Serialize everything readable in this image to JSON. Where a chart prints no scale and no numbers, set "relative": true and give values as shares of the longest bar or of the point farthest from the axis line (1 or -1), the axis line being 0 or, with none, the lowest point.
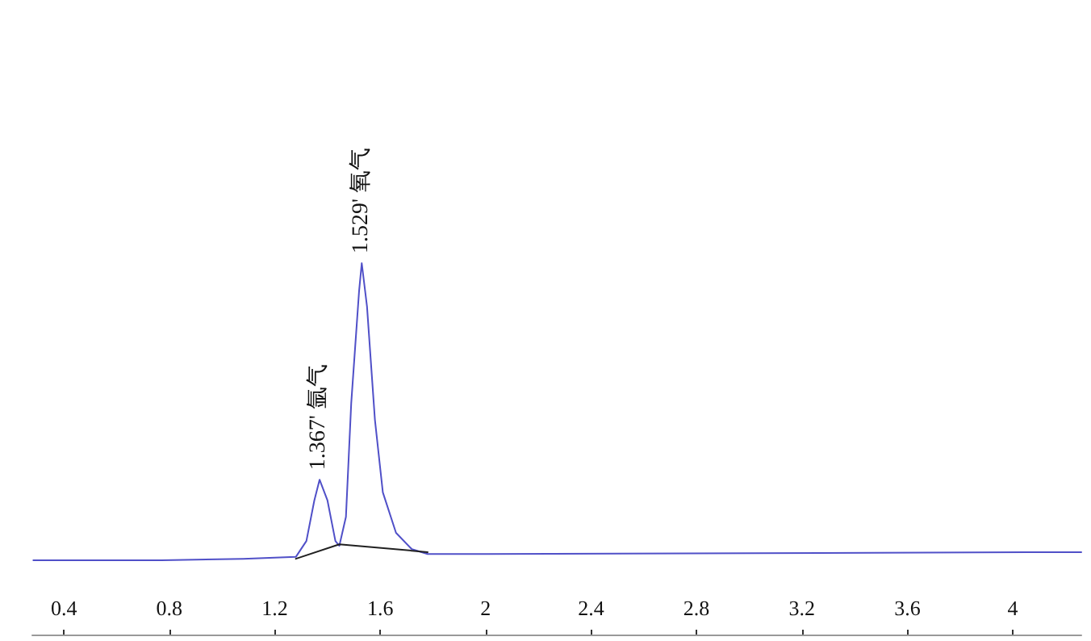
{
  "chart_data": {
    "type": "line",
    "relative": true,
    "xlim": [
      0.28,
      4.26
    ],
    "xticks": [
      0.4,
      0.8,
      1.2,
      1.6,
      2,
      2.4,
      2.8,
      3.2,
      3.6,
      4
    ],
    "grid": false,
    "marker": "none",
    "line_style": "solid",
    "series": [
      {
        "color": "#5050c8",
        "x": [
          0.284,
          0.77,
          1.08,
          1.28,
          1.32,
          1.35,
          1.37,
          1.4,
          1.43,
          1.445,
          1.47,
          1.49,
          1.52,
          1.53,
          1.55,
          1.58,
          1.61,
          1.66,
          1.72,
          1.78,
          2.0,
          4.26
        ],
        "values": [
          0.2,
          0.2,
          0.204,
          0.209,
          0.252,
          0.361,
          0.417,
          0.361,
          0.252,
          0.239,
          0.317,
          0.622,
          0.926,
          1,
          0.883,
          0.578,
          0.383,
          0.274,
          0.23,
          0.217,
          0.217,
          0.222
        ]
      },
      {
        "color": "#202020",
        "x": [
          1.28,
          1.445,
          1.78
        ],
        "values": [
          0.204,
          0.243,
          0.222
        ]
      }
    ],
    "annotations": [
      {
        "text": "1.367' 氩气",
        "x": 1.367,
        "y": 0.417
      },
      {
        "text": "1.529' 氧气",
        "x": 1.529,
        "y": 1
      }
    ]
  }
}
